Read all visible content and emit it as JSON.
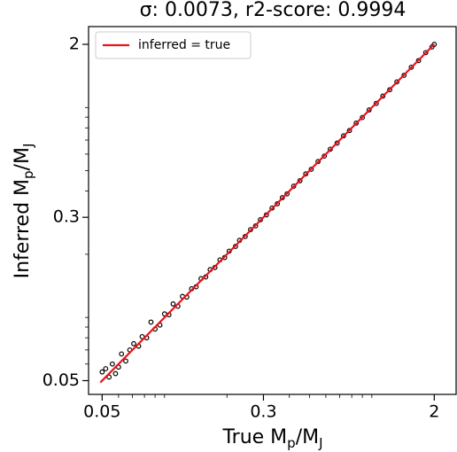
{
  "chart_data": {
    "type": "scatter",
    "title": "σ: 0.0073, r2-score: 0.9994",
    "xlabel": [
      "True M",
      "p",
      "/M",
      "J"
    ],
    "ylabel": [
      "Inferred M",
      "p",
      "/M",
      "J"
    ],
    "xscale": "log",
    "yscale": "log",
    "xlim": [
      0.043,
      2.55
    ],
    "ylim": [
      0.043,
      2.43
    ],
    "xticks": [
      0.05,
      0.3,
      2
    ],
    "yticks": [
      0.05,
      0.3,
      2
    ],
    "xminorticks": [
      0.06,
      0.07,
      0.08,
      0.09,
      0.1,
      0.2,
      0.4,
      0.5,
      0.6,
      0.7,
      0.8,
      0.9,
      1
    ],
    "yminorticks": [
      0.06,
      0.07,
      0.08,
      0.09,
      0.1,
      0.2,
      0.4,
      0.5,
      0.6,
      0.7,
      0.8,
      0.9,
      1
    ],
    "legend": "upper left",
    "series": [
      {
        "kind": "scatter",
        "color": "#000000",
        "x": [
          0.05,
          0.052,
          0.054,
          0.056,
          0.058,
          0.06,
          0.062,
          0.065,
          0.068,
          0.071,
          0.075,
          0.078,
          0.082,
          0.086,
          0.09,
          0.095,
          0.1,
          0.105,
          0.11,
          0.116,
          0.122,
          0.128,
          0.135,
          0.142,
          0.15,
          0.158,
          0.166,
          0.175,
          0.185,
          0.195,
          0.205,
          0.22,
          0.23,
          0.245,
          0.26,
          0.275,
          0.29,
          0.31,
          0.33,
          0.35,
          0.37,
          0.39,
          0.42,
          0.45,
          0.48,
          0.51,
          0.55,
          0.59,
          0.63,
          0.68,
          0.73,
          0.78,
          0.84,
          0.9,
          0.97,
          1.05,
          1.13,
          1.22,
          1.32,
          1.43,
          1.55,
          1.68,
          1.82,
          1.95,
          2.0
        ],
        "values": [
          0.055,
          0.057,
          0.052,
          0.06,
          0.054,
          0.058,
          0.067,
          0.062,
          0.07,
          0.075,
          0.073,
          0.081,
          0.08,
          0.095,
          0.088,
          0.092,
          0.104,
          0.103,
          0.116,
          0.113,
          0.126,
          0.125,
          0.137,
          0.14,
          0.153,
          0.156,
          0.169,
          0.173,
          0.188,
          0.193,
          0.207,
          0.218,
          0.233,
          0.243,
          0.262,
          0.273,
          0.292,
          0.308,
          0.332,
          0.348,
          0.372,
          0.388,
          0.422,
          0.448,
          0.483,
          0.508,
          0.553,
          0.587,
          0.633,
          0.677,
          0.733,
          0.777,
          0.843,
          0.896,
          0.974,
          1.046,
          1.134,
          1.216,
          1.325,
          1.424,
          1.556,
          1.673,
          1.827,
          1.943,
          2.0
        ]
      },
      {
        "kind": "line",
        "name": "inferred = true",
        "color": "#e8141c",
        "x": [
          0.049,
          2.0
        ],
        "values": [
          0.049,
          2.0
        ]
      }
    ]
  }
}
